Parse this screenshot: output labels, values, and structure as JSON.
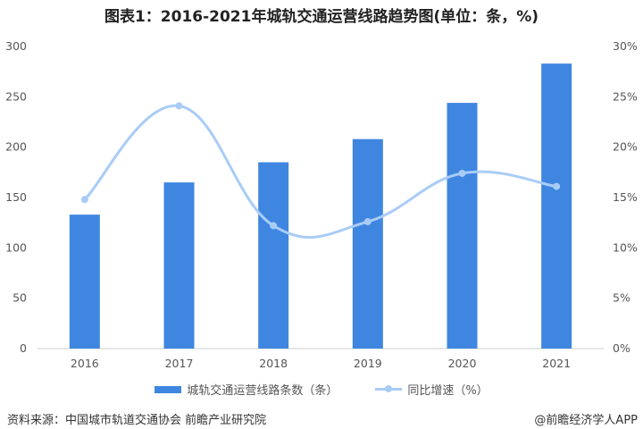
{
  "chart_data": {
    "type": "bar+line",
    "title": "图表1：2016-2021年城轨交通运营线路趋势图(单位：条，%)",
    "categories": [
      "2016",
      "2017",
      "2018",
      "2019",
      "2020",
      "2021"
    ],
    "series": [
      {
        "name": "城轨交通运营线路条数（条）",
        "type": "bar",
        "axis": "left",
        "values": [
          133,
          165,
          185,
          208,
          244,
          283
        ],
        "color": "#3e86e0"
      },
      {
        "name": "同比增速（%）",
        "type": "line",
        "axis": "right",
        "smooth": true,
        "values": [
          14.8,
          24.1,
          12.2,
          12.6,
          17.4,
          16.1
        ],
        "color": "#a9ccf7"
      }
    ],
    "left_axis": {
      "ylim": [
        0,
        300
      ],
      "ticks": [
        "0",
        "50",
        "100",
        "150",
        "200",
        "250",
        "300"
      ]
    },
    "right_axis": {
      "ylim": [
        0,
        30
      ],
      "ticks": [
        "0%",
        "5%",
        "10%",
        "15%",
        "20%",
        "25%",
        "30%"
      ]
    },
    "grid": false,
    "legend": "bottom"
  },
  "footer": {
    "source": "资料来源：中国城市轨道交通协会 前瞻产业研究院",
    "credit": "@前瞻经济学人APP"
  }
}
